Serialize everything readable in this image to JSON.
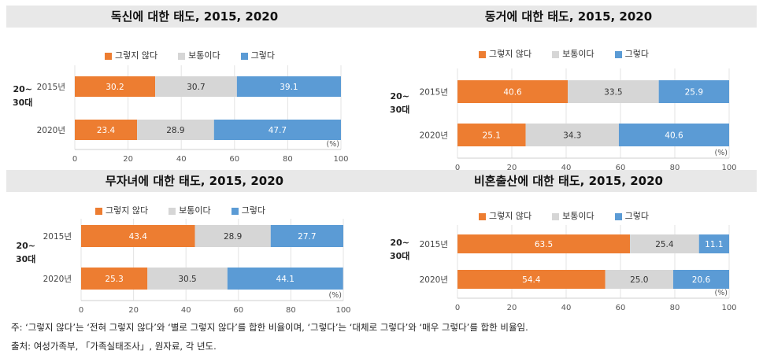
{
  "colors": {
    "no": "#ed7d31",
    "neutral": "#d6d6d6",
    "yes": "#5b9bd5"
  },
  "legend": [
    "그렇지 않다",
    "보통이다",
    "그렇다"
  ],
  "group_label": [
    "20~",
    "30대"
  ],
  "unit_label": "(%)",
  "x_ticks": [
    "0",
    "20",
    "40",
    "60",
    "80",
    "100"
  ],
  "chart_data": [
    {
      "type": "bar",
      "stacked": true,
      "orientation": "horizontal",
      "title": "독신에 대한 태도, 2015, 2020",
      "categories": [
        "2015년",
        "2020년"
      ],
      "series": [
        {
          "name": "그렇지 않다",
          "values": [
            30.2,
            23.4
          ]
        },
        {
          "name": "보통이다",
          "values": [
            30.7,
            28.9
          ]
        },
        {
          "name": "그렇다",
          "values": [
            39.1,
            47.7
          ]
        }
      ],
      "xlim": [
        0,
        100
      ],
      "legend_position": "top"
    },
    {
      "type": "bar",
      "stacked": true,
      "orientation": "horizontal",
      "title": "동거에 대한 태도, 2015, 2020",
      "categories": [
        "2015년",
        "2020년"
      ],
      "series": [
        {
          "name": "그렇지 않다",
          "values": [
            40.6,
            25.1
          ]
        },
        {
          "name": "보통이다",
          "values": [
            33.5,
            34.3
          ]
        },
        {
          "name": "그렇다",
          "values": [
            25.9,
            40.6
          ]
        }
      ],
      "xlim": [
        0,
        100
      ],
      "legend_position": "top"
    },
    {
      "type": "bar",
      "stacked": true,
      "orientation": "horizontal",
      "title": "무자녀에 대한 태도, 2015, 2020",
      "categories": [
        "2015년",
        "2020년"
      ],
      "series": [
        {
          "name": "그렇지 않다",
          "values": [
            43.4,
            25.3
          ]
        },
        {
          "name": "보통이다",
          "values": [
            28.9,
            30.5
          ]
        },
        {
          "name": "그렇다",
          "values": [
            27.7,
            44.1
          ]
        }
      ],
      "xlim": [
        0,
        100
      ],
      "legend_position": "top"
    },
    {
      "type": "bar",
      "stacked": true,
      "orientation": "horizontal",
      "title": "비혼출산에 대한 태도, 2015, 2020",
      "categories": [
        "2015년",
        "2020년"
      ],
      "series": [
        {
          "name": "그렇지 않다",
          "values": [
            63.5,
            54.4
          ]
        },
        {
          "name": "보통이다",
          "values": [
            25.4,
            25.0
          ]
        },
        {
          "name": "그렇다",
          "values": [
            11.1,
            20.6
          ]
        }
      ],
      "xlim": [
        0,
        100
      ],
      "legend_position": "top"
    }
  ],
  "footnotes": {
    "note": "주: ‘그렇지 않다’는 ‘전혀 그렇지 않다’와 ‘별로 그렇지 않다’를 합한 비율이며, ‘그렇다’는 ‘대체로 그렇다’와 ‘매우 그렇다’를 합한 비율임.",
    "source": "출처: 여성가족부, 「가족실태조사」, 원자료, 각 년도."
  }
}
